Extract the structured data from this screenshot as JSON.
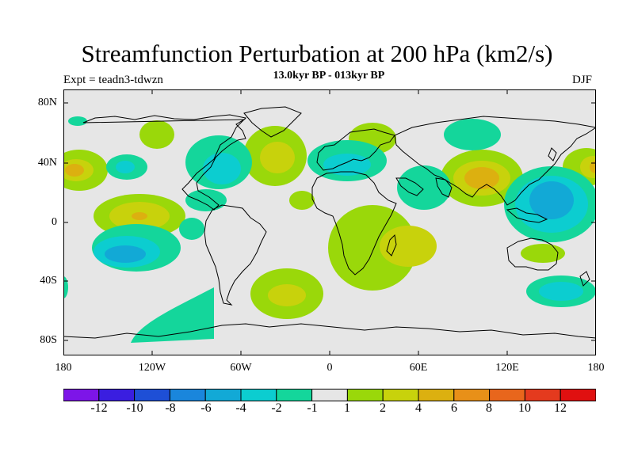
{
  "title": "Streamfunction Perturbation at 200 hPa (km2/s)",
  "subtitle": "13.0kyr BP - 013kyr BP",
  "expt_label": "Expt = teadn3-tdwzn",
  "season": "DJF",
  "map": {
    "projection": "cylindrical-equidistant",
    "lon_range": [
      -180,
      180
    ],
    "lat_range": [
      -90,
      90
    ],
    "y_ticks": [
      "80N",
      "40N",
      "0",
      "40S",
      "80S"
    ],
    "x_ticks": [
      "180",
      "120W",
      "60W",
      "0",
      "60E",
      "120E",
      "180"
    ],
    "background_color": "#e6e6e6"
  },
  "colorbar": {
    "colors": [
      "#7d15e8",
      "#3a1ee0",
      "#1e4fd6",
      "#1a86dc",
      "#12a9d6",
      "#0ccdd0",
      "#14d69b",
      "#e6e6e6",
      "#9ad80a",
      "#c8d20c",
      "#dcb010",
      "#e89018",
      "#e8661c",
      "#e43a1e",
      "#e01010"
    ],
    "labels": [
      "-12",
      "-10",
      "-8",
      "-6",
      "-4",
      "-2",
      "-1",
      "1",
      "2",
      "4",
      "6",
      "8",
      "10",
      "12"
    ]
  }
}
